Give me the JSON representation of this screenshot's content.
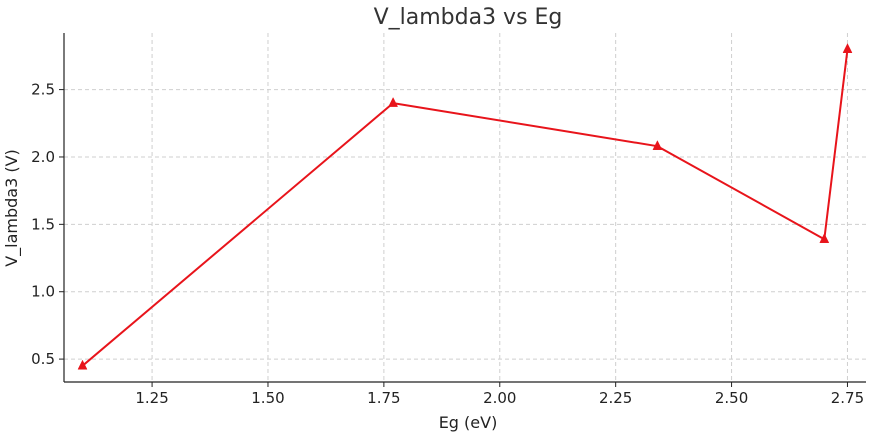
{
  "chart_data": {
    "type": "line",
    "title": "V_lambda3 vs Eg",
    "xlabel": "Eg (eV)",
    "ylabel": "V_lambda3 (V)",
    "xlim": [
      1.06,
      2.79
    ],
    "ylim": [
      0.33,
      2.92
    ],
    "xticks": [
      1.25,
      1.5,
      1.75,
      2.0,
      2.25,
      2.5,
      2.75
    ],
    "xtick_labels": [
      "1.25",
      "1.50",
      "1.75",
      "2.00",
      "2.25",
      "2.50",
      "2.75"
    ],
    "yticks": [
      0.5,
      1.0,
      1.5,
      2.0,
      2.5
    ],
    "ytick_labels": [
      "0.5",
      "1.0",
      "1.5",
      "2.0",
      "2.5"
    ],
    "grid": true,
    "series": [
      {
        "name": "V_lambda3",
        "color": "#e8141b",
        "marker": "triangle-up",
        "x": [
          1.1,
          1.77,
          2.34,
          2.7,
          2.75
        ],
        "y": [
          0.45,
          2.4,
          2.08,
          1.39,
          2.8
        ]
      }
    ]
  }
}
